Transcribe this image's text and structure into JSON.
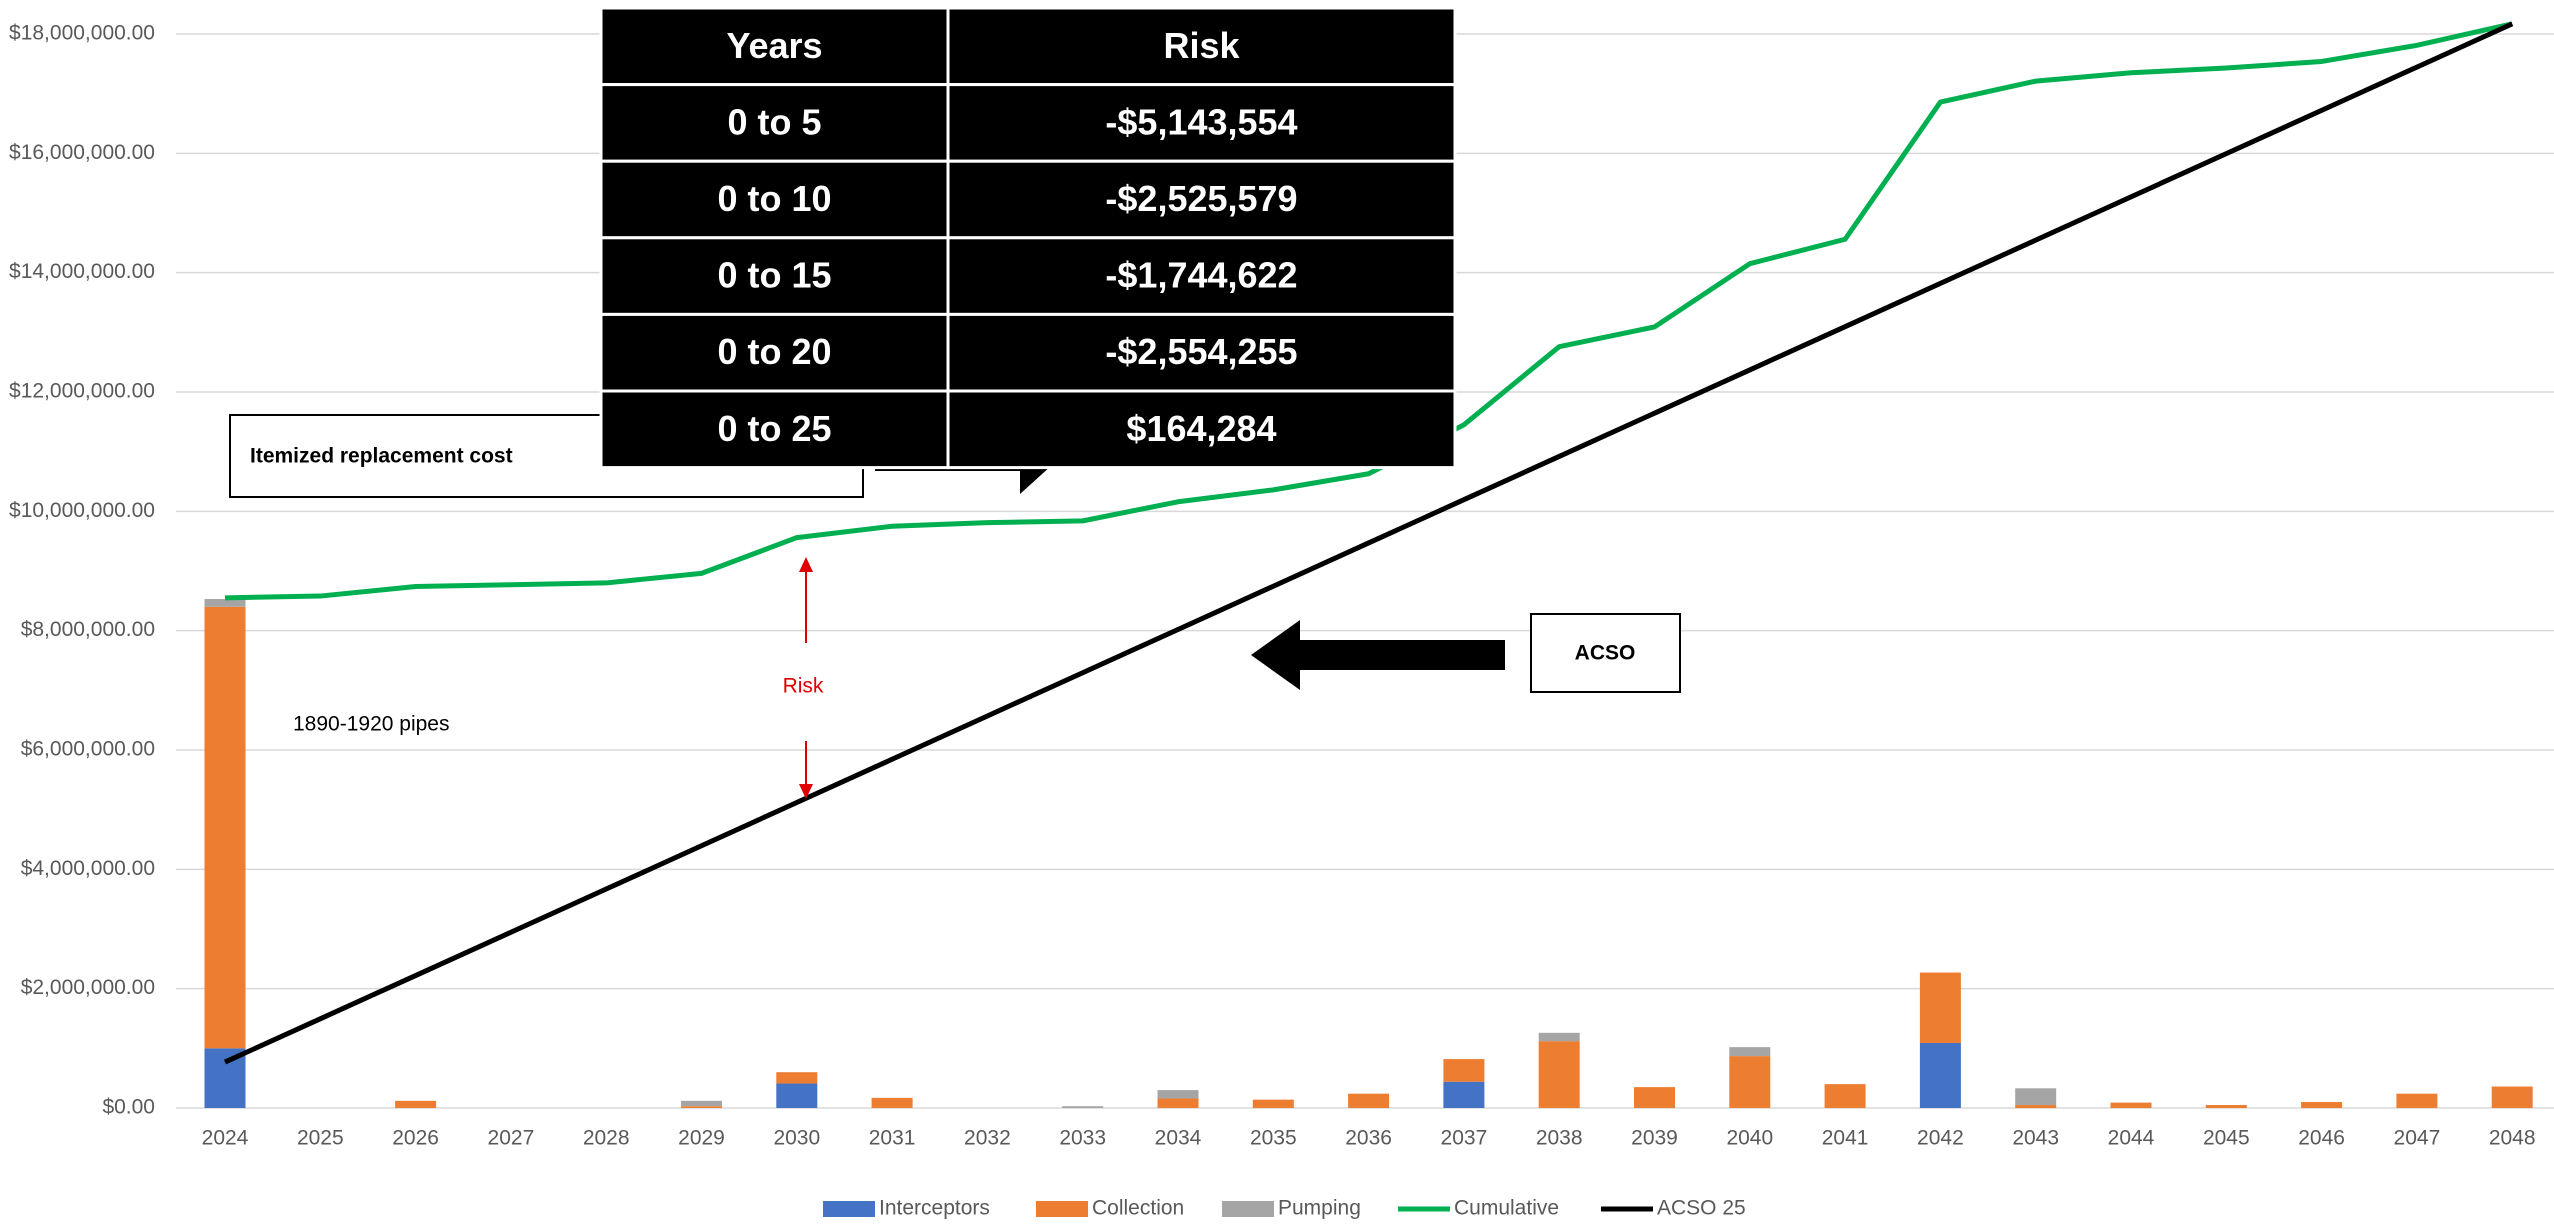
{
  "chart_data": {
    "type": "bar",
    "stacked": true,
    "categories": [
      "2024",
      "2025",
      "2026",
      "2027",
      "2028",
      "2029",
      "2030",
      "2031",
      "2032",
      "2033",
      "2034",
      "2035",
      "2036",
      "2037",
      "2038",
      "2039",
      "2040",
      "2041",
      "2042",
      "2043",
      "2044",
      "2045",
      "2046",
      "2047",
      "2048"
    ],
    "series": [
      {
        "name": "Interceptors",
        "type": "bar",
        "color": "#4472c4",
        "values": [
          1000000,
          0,
          0,
          0,
          0,
          0,
          410000,
          0,
          0,
          0,
          0,
          0,
          0,
          440000,
          0,
          0,
          0,
          0,
          1090000,
          0,
          0,
          0,
          0,
          0,
          0
        ]
      },
      {
        "name": "Collection",
        "type": "bar",
        "color": "#ed7d31",
        "values": [
          7400000,
          0,
          120000,
          0,
          0,
          30000,
          190000,
          170000,
          0,
          0,
          160000,
          140000,
          240000,
          380000,
          1120000,
          350000,
          870000,
          400000,
          1180000,
          50000,
          90000,
          50000,
          100000,
          240000,
          360000
        ]
      },
      {
        "name": "Pumping",
        "type": "bar",
        "color": "#a5a5a5",
        "values": [
          130000,
          0,
          0,
          0,
          0,
          90000,
          0,
          0,
          0,
          30000,
          140000,
          0,
          0,
          0,
          140000,
          0,
          150000,
          0,
          0,
          280000,
          0,
          0,
          0,
          0,
          0
        ]
      },
      {
        "name": "Cumulative",
        "type": "line",
        "color": "#00b050",
        "values": [
          8550000,
          8580000,
          8740000,
          8770000,
          8800000,
          8960000,
          9560000,
          9750000,
          9810000,
          9840000,
          10160000,
          10360000,
          10630000,
          11450000,
          12760000,
          13090000,
          14150000,
          14560000,
          16860000,
          17210000,
          17350000,
          17430000,
          17540000,
          17810000,
          18170000
        ]
      },
      {
        "name": "ACSO 25",
        "type": "line",
        "color": "#000000",
        "values": [
          770000,
          1495000,
          2220000,
          2945000,
          3670000,
          4395000,
          5120000,
          5845000,
          6570000,
          7295000,
          8020000,
          8745000,
          9470000,
          10195000,
          10920000,
          11645000,
          12370000,
          13095000,
          13820000,
          14545000,
          15270000,
          15995000,
          16720000,
          17445000,
          18170000
        ]
      }
    ],
    "ylim": [
      0,
      18000000
    ],
    "yticks": [
      {
        "value": 0,
        "label": "$0.00"
      },
      {
        "value": 2000000,
        "label": "$2,000,000.00"
      },
      {
        "value": 4000000,
        "label": "$4,000,000.00"
      },
      {
        "value": 6000000,
        "label": "$6,000,000.00"
      },
      {
        "value": 8000000,
        "label": "$8,000,000.00"
      },
      {
        "value": 10000000,
        "label": "$10,000,000.00"
      },
      {
        "value": 12000000,
        "label": "$12,000,000.00"
      },
      {
        "value": 14000000,
        "label": "$14,000,000.00"
      },
      {
        "value": 16000000,
        "label": "$16,000,000.00"
      },
      {
        "value": 18000000,
        "label": "$18,000,000.00"
      }
    ],
    "grid": true,
    "legend": "bottom",
    "table": {
      "columns": [
        "Years",
        "Risk"
      ],
      "rows": [
        [
          "0 to 5",
          "-$5,143,554"
        ],
        [
          "0 to 10",
          "-$2,525,579"
        ],
        [
          "0 to 15",
          "-$1,744,622"
        ],
        [
          "0 to 20",
          "-$2,554,255"
        ],
        [
          "0 to 25",
          "$164,284"
        ]
      ]
    },
    "annotations": {
      "itemized": "Itemized replacement cost",
      "acso": "ACSO",
      "risk": "Risk",
      "pipes": "1890-1920 pipes"
    }
  }
}
